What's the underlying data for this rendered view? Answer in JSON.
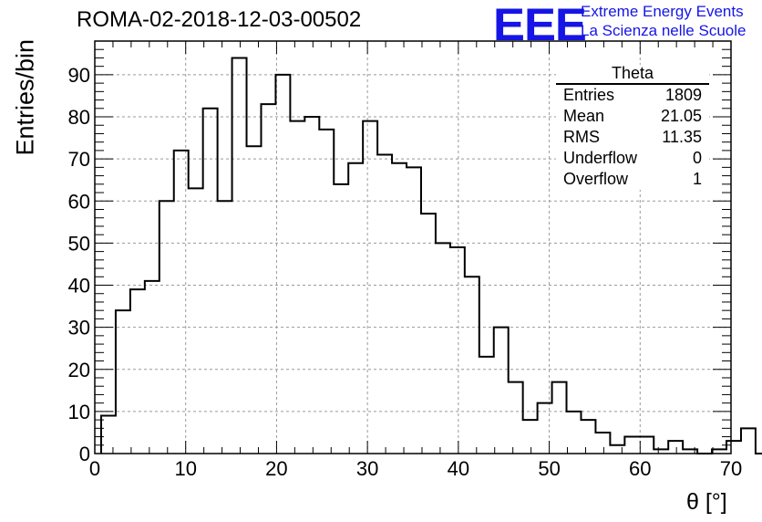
{
  "chart_data": {
    "type": "histogram",
    "title": "ROMA-02-2018-12-03-00502",
    "xlabel": "θ [°]",
    "ylabel": "Entries/bin",
    "xlim": [
      0,
      70
    ],
    "ylim": [
      0,
      98
    ],
    "grid": true,
    "x_ticks": [
      0,
      10,
      20,
      30,
      40,
      50,
      60,
      70
    ],
    "y_ticks": [
      0,
      10,
      20,
      30,
      40,
      50,
      60,
      70,
      80,
      90
    ],
    "bin_width": 1.6,
    "bin_edges_start": 0.7,
    "counts": [
      9,
      34,
      39,
      41,
      60,
      72,
      63,
      82,
      60,
      94,
      73,
      83,
      90,
      79,
      80,
      77,
      64,
      69,
      79,
      71,
      69,
      68,
      57,
      50,
      49,
      42,
      23,
      30,
      17,
      8,
      12,
      17,
      10,
      8,
      5,
      2,
      4,
      4,
      1,
      3,
      1,
      0,
      1,
      3,
      6,
      0
    ]
  },
  "stats_box": {
    "title": "Theta",
    "rows": [
      {
        "label": "Entries",
        "value": "1809"
      },
      {
        "label": "Mean",
        "value": "21.05"
      },
      {
        "label": "RMS",
        "value": "11.35"
      },
      {
        "label": "Underflow",
        "value": "0"
      },
      {
        "label": "Overflow",
        "value": "1"
      }
    ]
  },
  "logo": {
    "mark": "EEE",
    "line1": "Extreme Energy Events",
    "line2": "La Scienza nelle Scuole",
    "color": "#1515e6"
  }
}
